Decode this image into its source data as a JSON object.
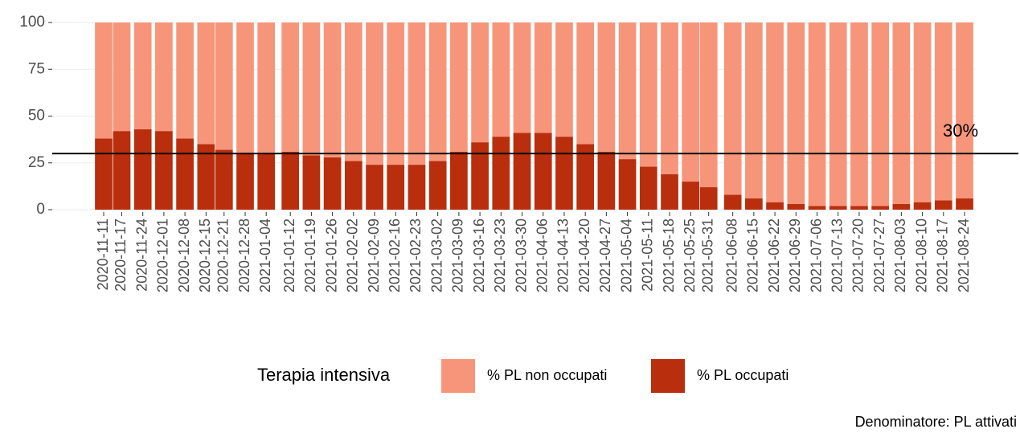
{
  "chart_data": {
    "type": "bar",
    "stacked": true,
    "x": [
      "2020-11-11",
      "2020-11-17",
      "2020-11-24",
      "2020-12-01",
      "2020-12-08",
      "2020-12-15",
      "2020-12-21",
      "2020-12-28",
      "2021-01-04",
      "2021-01-12",
      "2021-01-19",
      "2021-01-26",
      "2021-02-02",
      "2021-02-09",
      "2021-02-16",
      "2021-02-23",
      "2021-03-02",
      "2021-03-09",
      "2021-03-16",
      "2021-03-23",
      "2021-03-30",
      "2021-04-06",
      "2021-04-13",
      "2021-04-20",
      "2021-04-27",
      "2021-05-04",
      "2021-05-11",
      "2021-05-18",
      "2021-05-25",
      "2021-05-31",
      "2021-06-08",
      "2021-06-15",
      "2021-06-22",
      "2021-06-29",
      "2021-07-06",
      "2021-07-13",
      "2021-07-20",
      "2021-07-27",
      "2021-08-03",
      "2021-08-10",
      "2021-08-17",
      "2021-08-24"
    ],
    "legend_title": "Terapia intensiva",
    "series": [
      {
        "name": "% PL occupati",
        "color": "#b92e0d",
        "values": [
          38,
          42,
          43,
          42,
          38,
          35,
          32,
          30,
          30,
          31,
          29,
          28,
          26,
          24,
          24,
          24,
          26,
          31,
          36,
          39,
          41,
          41,
          39,
          35,
          31,
          27,
          23,
          19,
          15,
          12,
          8,
          6,
          4,
          3,
          2,
          2,
          2,
          2,
          3,
          4,
          5,
          6
        ]
      },
      {
        "name": "% PL non occupati",
        "color": "#f7957a",
        "values": [
          62,
          58,
          57,
          58,
          62,
          65,
          68,
          70,
          70,
          69,
          71,
          72,
          74,
          76,
          76,
          76,
          74,
          69,
          64,
          61,
          59,
          59,
          61,
          65,
          69,
          73,
          77,
          81,
          85,
          88,
          92,
          94,
          96,
          97,
          98,
          98,
          98,
          98,
          97,
          96,
          95,
          94
        ]
      }
    ],
    "ylim": [
      0,
      100
    ],
    "yticks": [
      0,
      25,
      50,
      75,
      100
    ],
    "grid": true,
    "hline": {
      "value": 30,
      "label": "30%"
    },
    "caption": "Denominatore: PL attivati"
  }
}
